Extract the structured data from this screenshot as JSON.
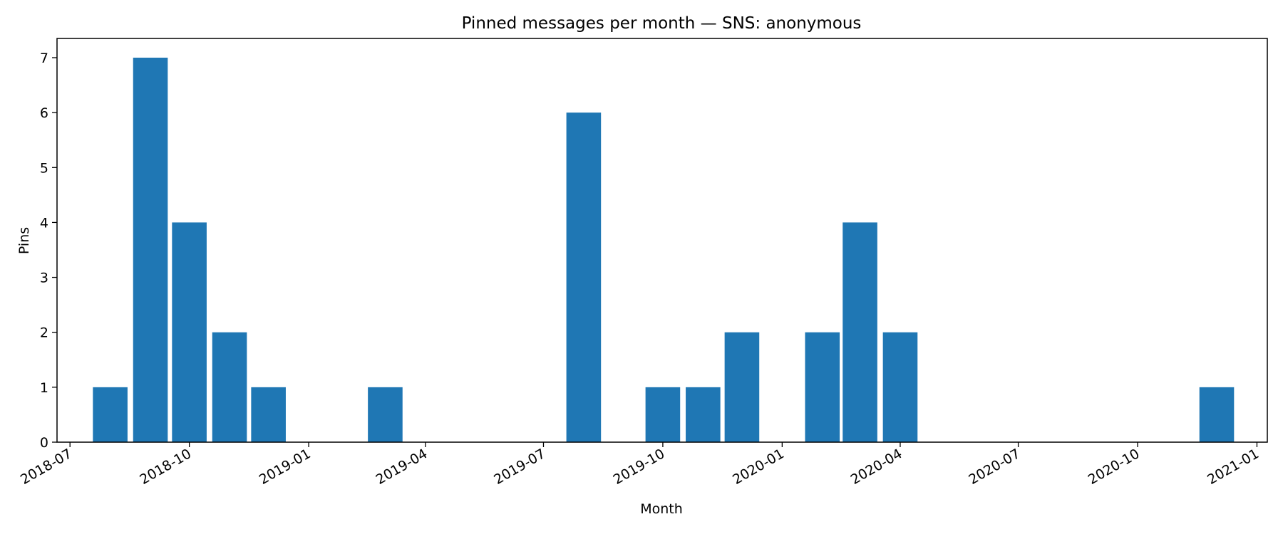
{
  "chart_data": {
    "type": "bar",
    "title": "Pinned messages per month — SNS: anonymous",
    "xlabel": "Month",
    "ylabel": "Pins",
    "x": [
      "2018-08",
      "2018-09",
      "2018-10",
      "2018-11",
      "2018-12",
      "2019-03",
      "2019-08",
      "2019-10",
      "2019-11",
      "2019-12",
      "2020-02",
      "2020-03",
      "2020-04",
      "2020-12"
    ],
    "values": [
      1,
      7,
      4,
      2,
      1,
      1,
      6,
      1,
      1,
      2,
      2,
      4,
      2,
      1
    ],
    "xlim": [
      "2018-06-21",
      "2021-01-09"
    ],
    "ylim": [
      0,
      7.35
    ],
    "xticks": [
      "2018-07",
      "2018-10",
      "2019-01",
      "2019-04",
      "2019-07",
      "2019-10",
      "2020-01",
      "2020-04",
      "2020-07",
      "2020-10",
      "2021-01"
    ],
    "yticks": [
      "0",
      "1",
      "2",
      "3",
      "4",
      "5",
      "6",
      "7"
    ],
    "bar_color": "#1f77b4",
    "grid": false,
    "legend": "none"
  }
}
